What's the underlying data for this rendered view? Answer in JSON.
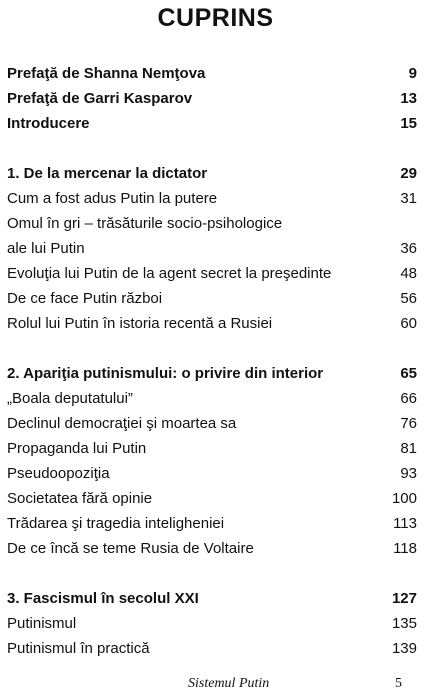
{
  "title": "CUPRINS",
  "entries": [
    {
      "text": "Prefaţă de Shanna Nemţova",
      "page": "9"
    },
    {
      "text": "Prefaţă de Garri Kasparov",
      "page": "13"
    },
    {
      "text": "Introducere",
      "page": "15"
    },
    {
      "text": "1. De la mercenar la dictator",
      "page": "29"
    },
    {
      "text": "Cum a fost adus Putin la putere",
      "page": "31"
    },
    {
      "text": "Omul în gri – trăsăturile socio-psihologice",
      "page": ""
    },
    {
      "text": "ale lui Putin",
      "page": "36"
    },
    {
      "text": "Evoluţia lui Putin de la agent secret la preşedinte",
      "page": "48"
    },
    {
      "text": "De ce face Putin război",
      "page": "56"
    },
    {
      "text": "Rolul lui Putin în istoria recentă a Rusiei",
      "page": "60"
    },
    {
      "text": "2. Apariţia putinismului: o privire din interior",
      "page": "65"
    },
    {
      "text": "„Boala deputatului”",
      "page": "66"
    },
    {
      "text": "Declinul democraţiei şi moartea sa",
      "page": "76"
    },
    {
      "text": "Propaganda lui Putin",
      "page": "81"
    },
    {
      "text": "Pseudoopoziţia",
      "page": "93"
    },
    {
      "text": "Societatea fără opinie",
      "page": "100"
    },
    {
      "text": "Trădarea şi tragedia inteligheniei",
      "page": "113"
    },
    {
      "text": "De ce încă se teme Rusia de Voltaire",
      "page": "118"
    },
    {
      "text": "3. Fascismul în secolul XXI",
      "page": "127"
    },
    {
      "text": "Putinismul",
      "page": "135"
    },
    {
      "text": "Putinismul în practică",
      "page": "139"
    }
  ],
  "footer": {
    "book_title": "Sistemul Putin",
    "page_number": "5"
  }
}
